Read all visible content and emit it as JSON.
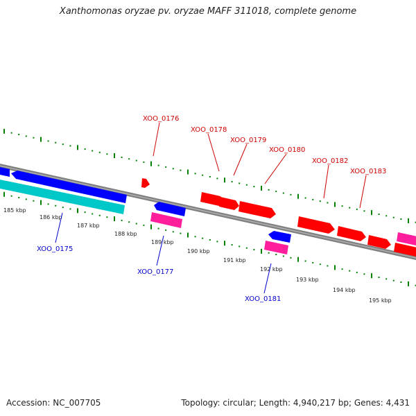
{
  "title": "Xanthomonas oryzae pv. oryzae MAFF 311018, complete genome",
  "footer": {
    "accession": "Accession: NC_007705",
    "summary": "Topology: circular; Length: 4,940,217 bp; Genes: 4,431"
  },
  "colors": {
    "backbone": "#808080",
    "forward_gene": "#ff0000",
    "reverse_gene": "#0000ff",
    "rna_cyan": "#00c8c8",
    "rna_magenta": "#ff1e9c",
    "tick": "#008000",
    "label_forward": "#cc0000",
    "label_reverse": "#0000cc"
  },
  "kbp_labels": [
    "185 kbp",
    "186 kbp",
    "187 kbp",
    "188 kbp",
    "189 kbp",
    "190 kbp",
    "191 kbp",
    "192 kbp",
    "193 kbp",
    "194 kbp",
    "195 kbp"
  ],
  "gene_labels": {
    "forward": [
      "XOO_0176",
      "XOO_0178",
      "XOO_0179",
      "XOO_0180",
      "XOO_0182",
      "XOO_0183"
    ],
    "reverse": [
      "XOO_0175",
      "XOO_0177",
      "XOO_0181"
    ]
  }
}
